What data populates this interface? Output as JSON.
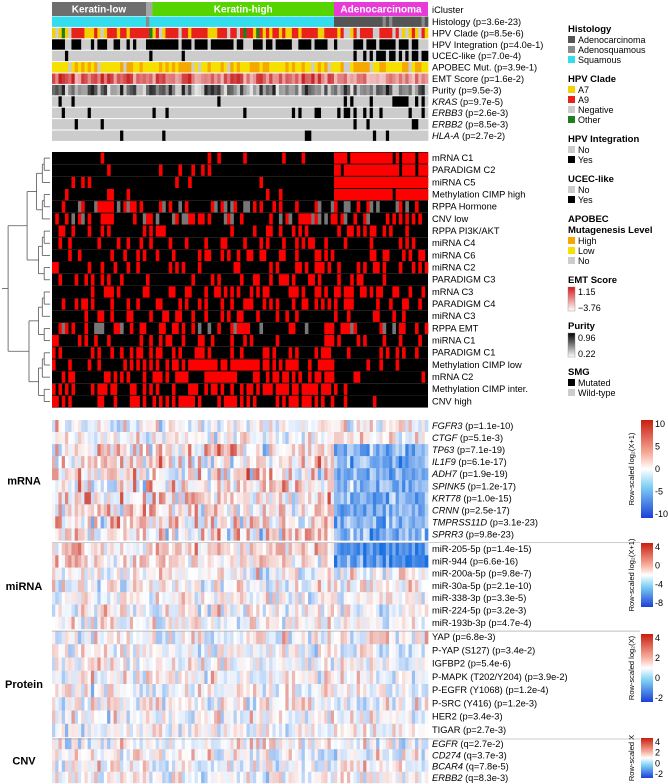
{
  "chart_data": {
    "type": "heatmap",
    "icluster": {
      "title": "iCluster",
      "groups": [
        {
          "name": "Keratin-low",
          "color": "#6e6e6e",
          "n": 29
        },
        {
          "name": "",
          "color": "#a6a6a6",
          "n": 2
        },
        {
          "name": "Keratin-high",
          "color": "#55d400",
          "n": 56
        },
        {
          "name": "Adenocarcinoma",
          "color": "#e83ad8",
          "n": 29
        }
      ]
    },
    "annotation_tracks": [
      {
        "key": "histology",
        "label": "Histology (p=3.6e-23)",
        "italic": false
      },
      {
        "key": "hpvclade",
        "label": "HPV Clade (p=8.5e-6)",
        "italic": false
      },
      {
        "key": "hpvint",
        "label": "HPV Integration (p=4.0e-1)",
        "italic": false
      },
      {
        "key": "ucec",
        "label": "UCEC-like (p=7.0e-4)",
        "italic": false
      },
      {
        "key": "apobec",
        "label": "APOBEC Mut. (p=3.9e-1)",
        "italic": false
      },
      {
        "key": "emt",
        "label": "EMT Score (p=1.6e-2)",
        "italic": false
      },
      {
        "key": "purity",
        "label": "Purity (p=9.5e-3)",
        "italic": false
      },
      {
        "key": "smg",
        "label": "KRAS",
        "suffix": " (p=9.7e-5)",
        "italic": true
      },
      {
        "key": "smg",
        "label": "ERBB3",
        "suffix": " (p=2.6e-3)",
        "italic": true
      },
      {
        "key": "smg",
        "label": "ERBB2",
        "suffix": " (p=8.5e-3)",
        "italic": true
      },
      {
        "key": "smg",
        "label": "HLA-A",
        "suffix": " (p=2.7e-2)",
        "italic": true
      }
    ],
    "cluster_rows": [
      "mRNA C1",
      "PARADIGM C2",
      "miRNA C5",
      "Methylation CIMP high",
      "RPPA Hormone",
      "CNV low",
      "RPPA PI3K/AKT",
      "miRNA C4",
      "miRNA C6",
      "miRNA C2",
      "PARADIGM C3",
      "mRNA C3",
      "PARADIGM C4",
      "miRNA C3",
      "RPPA EMT",
      "miRNA C1",
      "PARADIGM C1",
      "Methylation CIMP low",
      "mRNA C2",
      "Methylation CIMP inter.",
      "CNV high"
    ],
    "sections": [
      {
        "name": "mRNA",
        "rows": [
          {
            "gene": "FGFR3",
            "p": " (p=1.1e-10)",
            "italic": true,
            "pattern": "flat"
          },
          {
            "gene": "CTGF",
            "p": " (p=5.1e-3)",
            "italic": true,
            "pattern": "flat"
          },
          {
            "gene": "TP63",
            "p": " (p=7.1e-19)",
            "italic": true,
            "pattern": "up_sq"
          },
          {
            "gene": "IL1F9",
            "p": " (p=6.1e-17)",
            "italic": true,
            "pattern": "up_sq"
          },
          {
            "gene": "ADH7",
            "p": " (p=1.9e-19)",
            "italic": true,
            "pattern": "up_sq"
          },
          {
            "gene": "SPINK5",
            "p": " (p=1.2e-17)",
            "italic": true,
            "pattern": "up_sq"
          },
          {
            "gene": "KRT78",
            "p": " (p=1.0e-15)",
            "italic": true,
            "pattern": "up_sq"
          },
          {
            "gene": "CRNN",
            "p": " (p=2.5e-17)",
            "italic": true,
            "pattern": "up_sq"
          },
          {
            "gene": "TMPRSS11D",
            "p": " (p=3.1e-23)",
            "italic": true,
            "pattern": "up_sq"
          },
          {
            "gene": "SPRR3",
            "p": " (p=9.8e-23)",
            "italic": true,
            "pattern": "up_sq"
          }
        ]
      },
      {
        "name": "miRNA",
        "rows": [
          {
            "gene": "miR-205-5p",
            "p": " (p=1.4e-15)",
            "italic": false,
            "pattern": "down_ad"
          },
          {
            "gene": "miR-944",
            "p": "  (p=6.6e-16)",
            "italic": false,
            "pattern": "down_ad"
          },
          {
            "gene": "miR-200a-5p",
            "p": " (p=9.8e-7)",
            "italic": false,
            "pattern": "flat"
          },
          {
            "gene": "miR-30a-5p",
            "p": " (p=2.1e-10)",
            "italic": false,
            "pattern": "flat"
          },
          {
            "gene": "miR-338-3p",
            "p": " (p=3.3e-5)",
            "italic": false,
            "pattern": "flat"
          },
          {
            "gene": "miR-224-5p",
            "p": " (p=3.2e-3)",
            "italic": false,
            "pattern": "flat"
          },
          {
            "gene": "miR-193b-3p",
            "p": " (p=4.7e-4)",
            "italic": false,
            "pattern": "flat"
          }
        ]
      },
      {
        "name": "Protein",
        "rows": [
          {
            "gene": "YAP",
            "p": " (p=6.8e-3)",
            "italic": false,
            "pattern": "flat"
          },
          {
            "gene": "P-YAP (S127)",
            "p": " (p=3.4e-2)",
            "italic": false,
            "pattern": "flat"
          },
          {
            "gene": "IGFBP2",
            "p": " (p=5.4e-6)",
            "italic": false,
            "pattern": "flat"
          },
          {
            "gene": "P-MAPK (T202/Y204)",
            "p": " (p=3.9e-2)",
            "italic": false,
            "pattern": "flat"
          },
          {
            "gene": "P-EGFR (Y1068)",
            "p": " (p=1.2e-4)",
            "italic": false,
            "pattern": "flat"
          },
          {
            "gene": "P-SRC (Y416)",
            "p": " (p=1.2e-3)",
            "italic": false,
            "pattern": "flat"
          },
          {
            "gene": "HER2",
            "p": " (p=3.4e-3)",
            "italic": false,
            "pattern": "flat"
          },
          {
            "gene": "TIGAR",
            "p": " (p=2.7e-3)",
            "italic": false,
            "pattern": "flat"
          }
        ]
      },
      {
        "name": "CNV",
        "rows": [
          {
            "gene": "EGFR",
            "p": " (q=2.7e-2)",
            "italic": true,
            "pattern": "flat"
          },
          {
            "gene": "CD274",
            "p": " (q=3.7e-3)",
            "italic": true,
            "pattern": "flat"
          },
          {
            "gene": "BCAR4",
            "p": " (q=7.8e-5)",
            "italic": true,
            "pattern": "flat"
          },
          {
            "gene": "ERBB2",
            "p": " (q=8.3e-3)",
            "italic": true,
            "pattern": "flat"
          }
        ]
      }
    ],
    "colorbars": [
      {
        "title": "Row-scaled log₂(X+1)",
        "ticks": [
          "10",
          "5",
          "0",
          "-5",
          "-10"
        ]
      },
      {
        "title": "Row-scaled log₂(X+1)",
        "ticks": [
          "4",
          "0",
          "-4",
          "-8"
        ]
      },
      {
        "title": "Row-scaled log₂(X)",
        "ticks": [
          "4",
          "2",
          "0",
          "-2"
        ]
      },
      {
        "title": "Row-scaled X",
        "ticks": [
          "4",
          "2",
          "0",
          "-2"
        ]
      }
    ]
  },
  "legend": [
    {
      "title": "Histology",
      "items": [
        {
          "label": "Adenocarcinoma",
          "color": "#555555"
        },
        {
          "label": "Adenosquamous",
          "color": "#8a8a8a"
        },
        {
          "label": "Squamous",
          "color": "#33ddee"
        }
      ]
    },
    {
      "title": "HPV Clade",
      "items": [
        {
          "label": "A7",
          "color": "#f5d000"
        },
        {
          "label": "A9",
          "color": "#e8221a"
        },
        {
          "label": "Negative",
          "color": "#cccccc"
        },
        {
          "label": "Other",
          "color": "#1e7d1e"
        }
      ]
    },
    {
      "title": "HPV Integration",
      "items": [
        {
          "label": "No",
          "color": "#cccccc"
        },
        {
          "label": "Yes",
          "color": "#000000"
        }
      ]
    },
    {
      "title": "UCEC-like",
      "items": [
        {
          "label": "No",
          "color": "#cccccc"
        },
        {
          "label": "Yes",
          "color": "#000000"
        }
      ]
    },
    {
      "title": "APOBEC\nMutagenesis Level",
      "items": [
        {
          "label": "High",
          "color": "#f5a800"
        },
        {
          "label": "Low",
          "color": "#f5e000"
        },
        {
          "label": "No",
          "color": "#cccccc"
        }
      ]
    },
    {
      "title": "EMT Score",
      "gradient": [
        "#d7191c",
        "#ffffff"
      ],
      "labels": [
        "1.15",
        "−3.76"
      ]
    },
    {
      "title": "Purity",
      "gradient": [
        "#000000",
        "#ffffff"
      ],
      "labels": [
        "0.96",
        "0.22"
      ]
    },
    {
      "title": "SMG",
      "items": [
        {
          "label": "Mutated",
          "color": "#000000"
        },
        {
          "label": "Wild-type",
          "color": "#cccccc"
        }
      ]
    }
  ]
}
